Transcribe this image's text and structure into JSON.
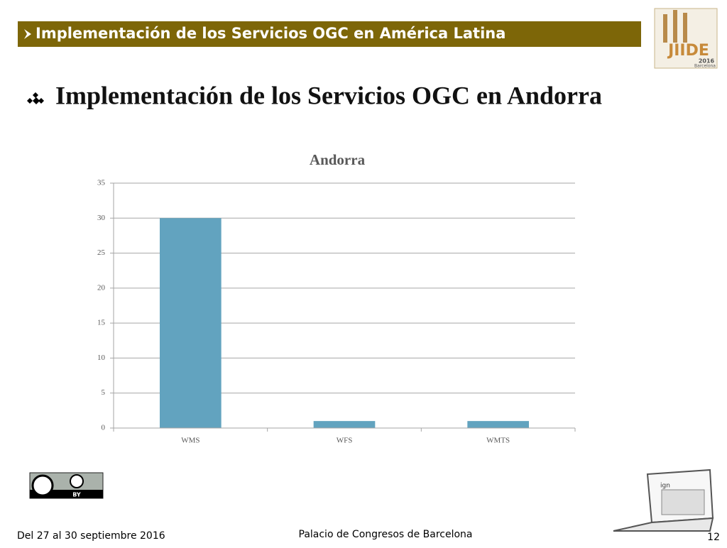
{
  "header": {
    "title": "Implementación de los Servicios OGC en América Latina"
  },
  "heading": "Implementación de los Servicios OGC en Andorra",
  "logo": {
    "name": "JIIDE",
    "year": "2016",
    "city": "Barcelona"
  },
  "license": {
    "label": "BY"
  },
  "laptop": {
    "label": "ign"
  },
  "footer": {
    "dates": "Del 27 al 30 septiembre 2016",
    "venue": "Palacio de Congresos de Barcelona",
    "page": "12"
  },
  "chart_data": {
    "type": "bar",
    "title": "Andorra",
    "categories": [
      "WMS",
      "WFS",
      "WMTS"
    ],
    "values": [
      30,
      1,
      1
    ],
    "color": "#62a3bf",
    "ylim": [
      0,
      35
    ],
    "yticks": [
      0,
      5,
      10,
      15,
      20,
      25,
      30,
      35
    ],
    "grid": true
  }
}
